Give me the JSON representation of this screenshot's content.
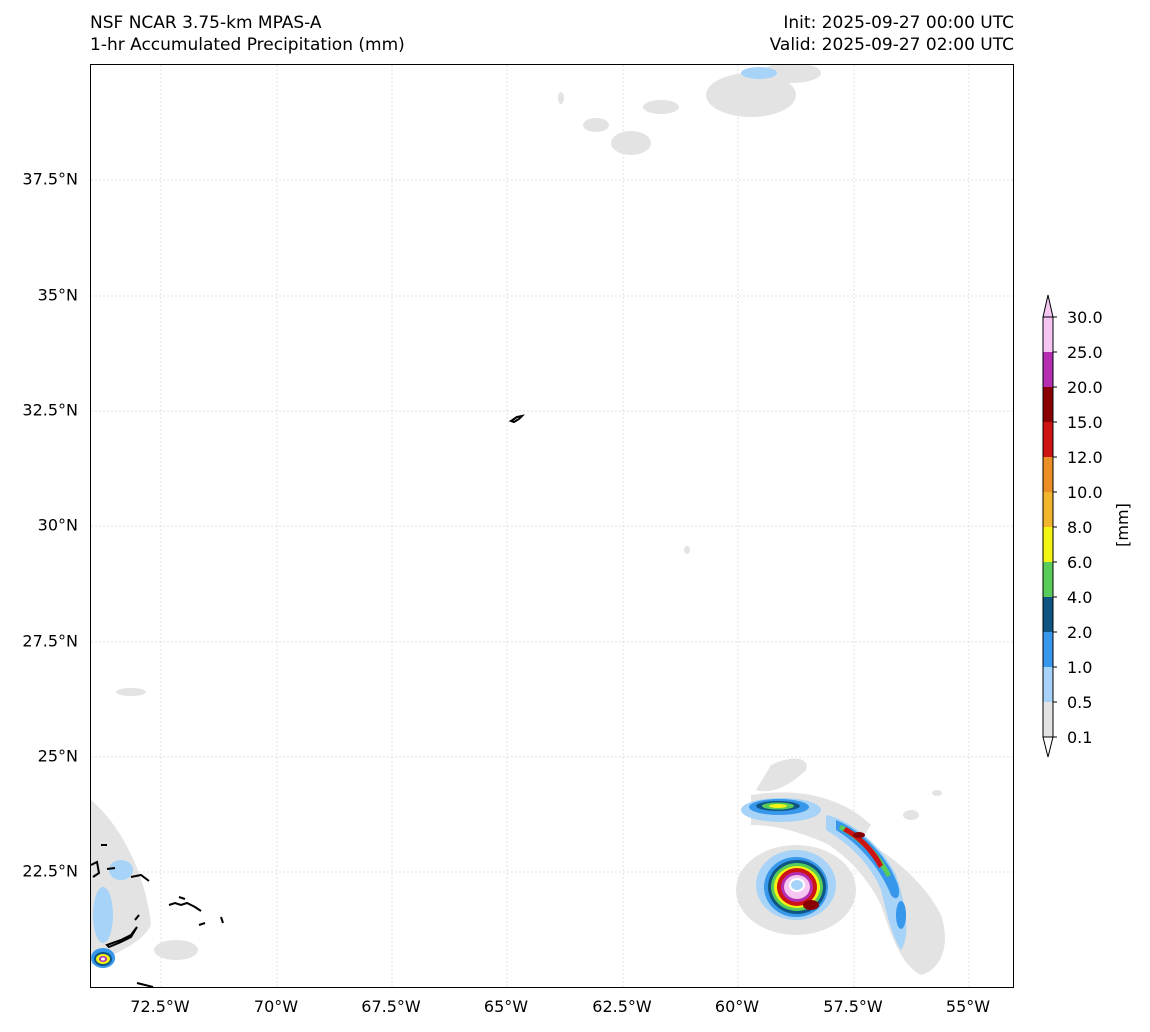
{
  "header": {
    "model": "NSF NCAR 3.75-km MPAS-A",
    "field": "1-hr Accumulated Precipitation (mm)",
    "init": "Init: 2025-09-27 00:00 UTC",
    "valid": "Valid: 2025-09-27 02:00 UTC"
  },
  "map": {
    "lat_ticks": [
      "37.5°N",
      "35°N",
      "32.5°N",
      "30°N",
      "27.5°N",
      "25°N",
      "22.5°N"
    ],
    "lon_ticks": [
      "72.5°W",
      "70°W",
      "67.5°W",
      "65°W",
      "62.5°W",
      "60°W",
      "57.5°W",
      "55°W"
    ],
    "grid_color": "#d9d9d9",
    "coastline_color": "#000000"
  },
  "colorbar": {
    "label": "[mm]",
    "levels": [
      "0.1",
      "0.5",
      "1.0",
      "2.0",
      "4.0",
      "6.0",
      "8.0",
      "10.0",
      "12.0",
      "15.0",
      "20.0",
      "25.0",
      "30.0"
    ],
    "colors": [
      "#e3e3e3",
      "#a6d3f7",
      "#3797ea",
      "#0f5584",
      "#57cc58",
      "#f4f412",
      "#f1b62c",
      "#ec8e26",
      "#cd1313",
      "#890000",
      "#b52eb1",
      "#f4c6f1"
    ]
  }
}
